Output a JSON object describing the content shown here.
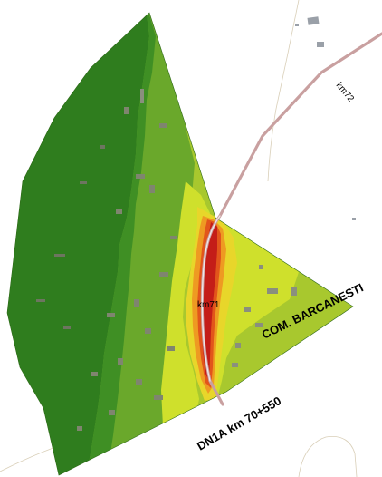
{
  "map": {
    "labels": {
      "km72": "km72",
      "km71": "km71",
      "community": "COM. BARCANESTI",
      "road_section": "DN1A km 70+550"
    },
    "colors": {
      "background": "#ffffff",
      "zone_darkest": "#2f7d1e",
      "zone_dark": "#3f8f24",
      "zone_medium": "#6aa82b",
      "zone_light": "#a8c82e",
      "zone_lime": "#cfe02c",
      "zone_yellow": "#e8d62a",
      "zone_orange": "#ee9a22",
      "zone_redorange": "#e2551b",
      "zone_red": "#c41d18",
      "road": "#c9a0a0",
      "road_core": "#f0e6e6",
      "building": "#8a8f7e",
      "thin_line": "#d9cfb8"
    }
  }
}
